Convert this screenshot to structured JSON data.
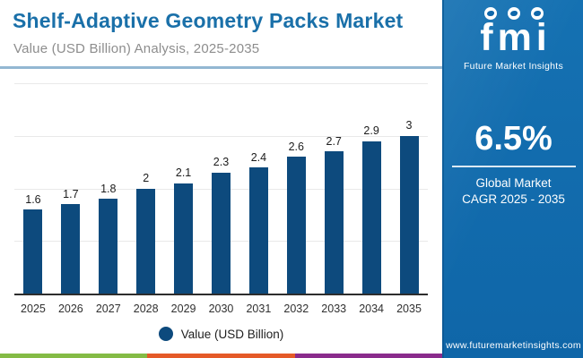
{
  "header": {
    "title": "Shelf-Adaptive Geometry Packs Market",
    "subtitle": "Value (USD Billion) Analysis, 2025-2035"
  },
  "chart_data": {
    "type": "bar",
    "title": "Shelf-Adaptive Geometry Packs Market",
    "subtitle": "Value (USD Billion) Analysis, 2025-2035",
    "categories": [
      "2025",
      "2026",
      "2027",
      "2028",
      "2029",
      "2030",
      "2031",
      "2032",
      "2033",
      "2034",
      "2035"
    ],
    "values": [
      1.6,
      1.7,
      1.8,
      2,
      2.1,
      2.3,
      2.4,
      2.6,
      2.7,
      2.9,
      3
    ],
    "series_name": "Value (USD Billion)",
    "xlabel": "",
    "ylabel": "Value (USD Billion)",
    "ylim": [
      0,
      4
    ],
    "gridline_values": [
      1,
      2,
      3,
      4
    ],
    "grid": "horizontal",
    "y_tick_labels_shown": false,
    "value_labels_shown": true,
    "legend_position": "bottom",
    "bar_color": "#0d4a7d"
  },
  "legend": {
    "marker": "circle",
    "marker_color": "#0d4a7d",
    "label": "Value (USD Billion)"
  },
  "sidebar": {
    "logo": {
      "text": "fmi",
      "tagline": "Future Market Insights"
    },
    "cagr_value": "6.5%",
    "cagr_line1": "Global Market",
    "cagr_line2": "CAGR 2025 - 2035",
    "website": "www.futuremarketinsights.com"
  },
  "footer_stripe_colors": [
    "#84bb45",
    "#e55a28",
    "#8a2b8c"
  ],
  "colors": {
    "title_blue": "#1a70a9",
    "subtitle_gray": "#8d8d8d",
    "sidebar_blue": "#1069ac",
    "bar_navy": "#0d4a7d",
    "axis": "#2d2d2d",
    "gridline": "#e9e9e9",
    "header_divider": "#93b7d2"
  }
}
